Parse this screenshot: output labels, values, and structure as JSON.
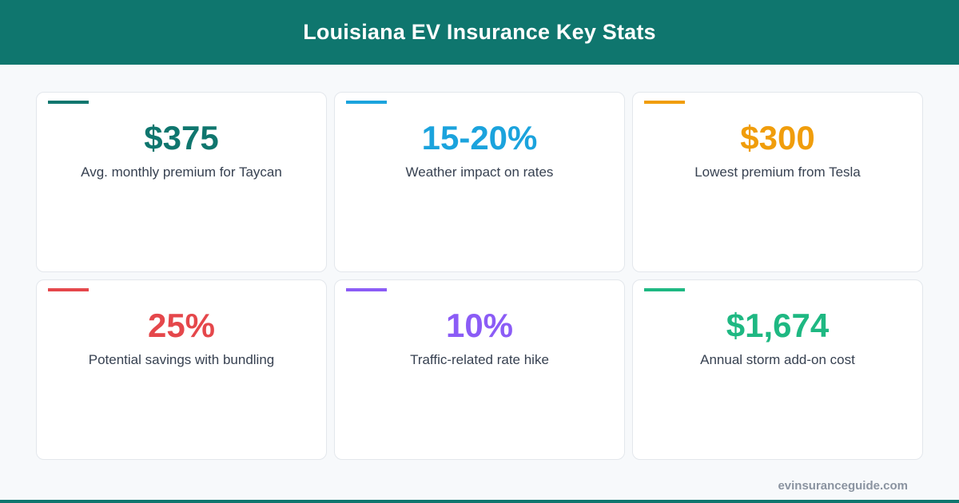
{
  "header": {
    "title": "Louisiana EV Insurance Key Stats"
  },
  "stats": [
    {
      "value": "$375",
      "label": "Avg. monthly premium for Taycan",
      "color": "#0f766e"
    },
    {
      "value": "15-20%",
      "label": "Weather impact on rates",
      "color": "#1ba3dd"
    },
    {
      "value": "$300",
      "label": "Lowest premium from Tesla",
      "color": "#f09d0b"
    },
    {
      "value": "25%",
      "label": "Potential savings with bundling",
      "color": "#e5474b"
    },
    {
      "value": "10%",
      "label": "Traffic-related rate hike",
      "color": "#8b5cf6"
    },
    {
      "value": "$1,674",
      "label": "Annual storm add-on cost",
      "color": "#1eb882"
    }
  ],
  "footer": {
    "site": "evinsuranceguide.com"
  },
  "colors": {
    "brand": "#0f766e",
    "background": "#f7f9fb"
  }
}
